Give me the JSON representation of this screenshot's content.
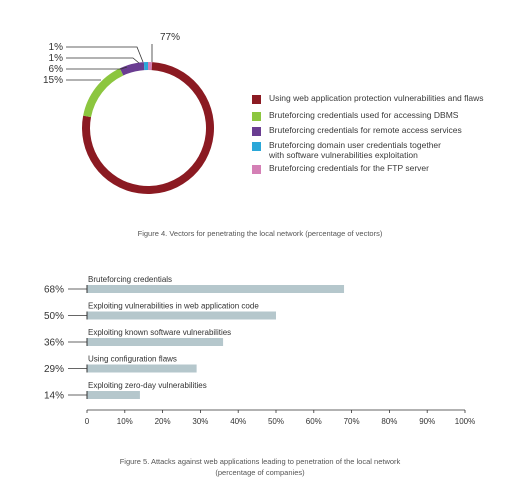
{
  "figure4": {
    "caption": "Figure 4. Vectors for penetrating the local network (percentage of vectors)",
    "chart_data": {
      "type": "pie",
      "slices": [
        {
          "label": "Using web application protection vulnerabilities and flaws",
          "value": 77,
          "value_label": "77%",
          "color": "#8b1a22"
        },
        {
          "label": "Bruteforcing credentials used for accessing DBMS",
          "value": 15,
          "value_label": "15%",
          "color": "#8cc63f"
        },
        {
          "label": "Bruteforcing credentials for remote access services",
          "value": 6,
          "value_label": "6%",
          "color": "#6a3d91"
        },
        {
          "label": "Bruteforcing domain user credentials together\nwith software vulnerabilities exploitation",
          "value": 1,
          "value_label": "1%",
          "color": "#2aa7d8"
        },
        {
          "label": "Bruteforcing credentials for the FTP server",
          "value": 1,
          "value_label": "1%",
          "color": "#d47fb5"
        }
      ],
      "callouts": [
        "1%",
        "1%",
        "6%",
        "15%"
      ],
      "top_label": "77%",
      "legend_position": "right"
    }
  },
  "figure5": {
    "caption_line1": "Figure 5. Attacks against web applications leading to penetration of the local network",
    "caption_line2": "(percentage of companies)",
    "chart_data": {
      "type": "bar",
      "orientation": "horizontal",
      "categories": [
        "Bruteforcing credentials",
        "Exploiting vulnerabilities in web application code",
        "Exploiting known software vulnerabilities",
        "Using configuration flaws",
        "Exploiting zero-day vulnerabilities"
      ],
      "values": [
        68,
        50,
        36,
        29,
        14
      ],
      "value_labels": [
        "68%",
        "50%",
        "36%",
        "29%",
        "14%"
      ],
      "xlim": [
        0,
        100
      ],
      "xticks": [
        "0",
        "10%",
        "20%",
        "30%",
        "40%",
        "50%",
        "60%",
        "70%",
        "80%",
        "90%",
        "100%"
      ],
      "bar_color": "#b5c7cc"
    }
  }
}
